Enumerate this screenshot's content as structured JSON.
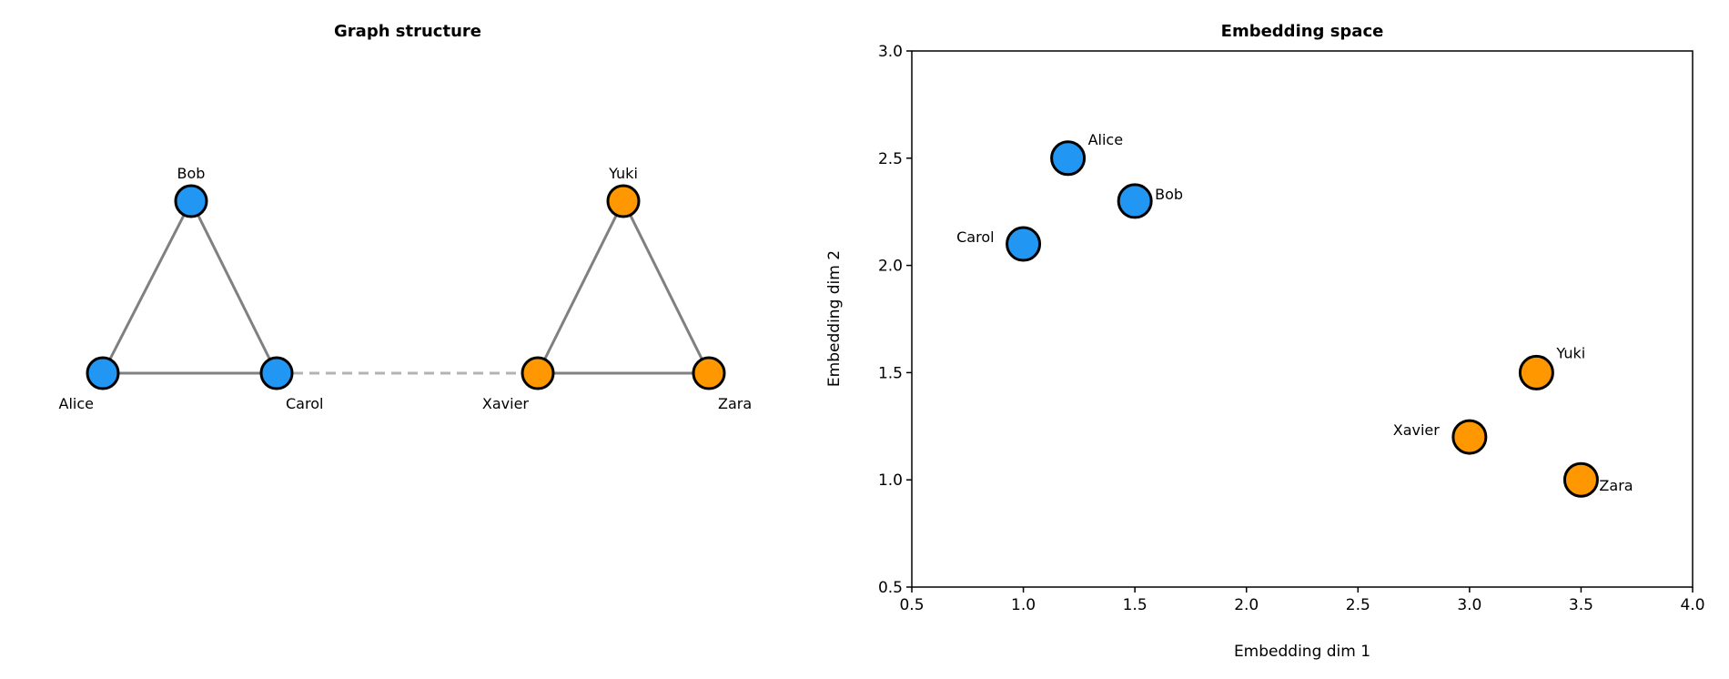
{
  "colors": {
    "group_a": "#2196F3",
    "group_b": "#FF9800",
    "edge": "#808080",
    "bridge": "#b3b3b3",
    "outline": "#000000"
  },
  "chart_data": [
    {
      "type": "network",
      "title": "Graph structure",
      "nodes": [
        {
          "name": "Alice",
          "group": "a"
        },
        {
          "name": "Bob",
          "group": "a"
        },
        {
          "name": "Carol",
          "group": "a"
        },
        {
          "name": "Xavier",
          "group": "b"
        },
        {
          "name": "Yuki",
          "group": "b"
        },
        {
          "name": "Zara",
          "group": "b"
        }
      ],
      "edges": [
        {
          "source": "Alice",
          "target": "Bob",
          "style": "solid"
        },
        {
          "source": "Bob",
          "target": "Carol",
          "style": "solid"
        },
        {
          "source": "Alice",
          "target": "Carol",
          "style": "solid"
        },
        {
          "source": "Xavier",
          "target": "Yuki",
          "style": "solid"
        },
        {
          "source": "Yuki",
          "target": "Zara",
          "style": "solid"
        },
        {
          "source": "Xavier",
          "target": "Zara",
          "style": "solid"
        },
        {
          "source": "Carol",
          "target": "Xavier",
          "style": "dashed"
        }
      ]
    },
    {
      "type": "scatter",
      "title": "Embedding space",
      "xlabel": "Embedding dim 1",
      "ylabel": "Embedding dim 2",
      "xlim": [
        0.5,
        4.0
      ],
      "ylim": [
        0.5,
        3.0
      ],
      "xticks": [
        "0.5",
        "1.0",
        "1.5",
        "2.0",
        "2.5",
        "3.0",
        "3.5",
        "4.0"
      ],
      "yticks": [
        "0.5",
        "1.0",
        "1.5",
        "2.0",
        "2.5",
        "3.0"
      ],
      "grid": false,
      "points": [
        {
          "name": "Alice",
          "x": 1.2,
          "y": 2.5,
          "group": "a"
        },
        {
          "name": "Bob",
          "x": 1.5,
          "y": 2.3,
          "group": "a"
        },
        {
          "name": "Carol",
          "x": 1.0,
          "y": 2.1,
          "group": "a"
        },
        {
          "name": "Xavier",
          "x": 3.0,
          "y": 1.2,
          "group": "b"
        },
        {
          "name": "Yuki",
          "x": 3.3,
          "y": 1.5,
          "group": "b"
        },
        {
          "name": "Zara",
          "x": 3.5,
          "y": 1.0,
          "group": "b"
        }
      ]
    }
  ]
}
